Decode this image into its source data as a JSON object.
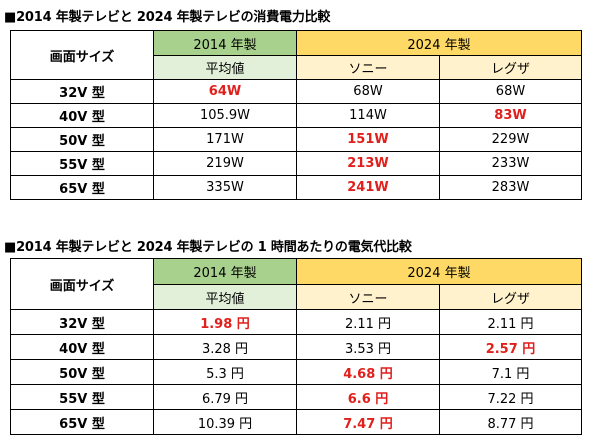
{
  "table1": {
    "title": "■2014 年製テレビと 2024 年製テレビの消費電力比較",
    "header": {
      "size_label": "画面サイズ",
      "year_2014": "2014 年製",
      "year_2024": "2024 年製",
      "avg_label": "平均値",
      "sony_label": "ソニー",
      "regza_label": "レグザ"
    },
    "rows": [
      {
        "size": "32V 型",
        "avg": "64W",
        "sony": "68W",
        "regza": "68W"
      },
      {
        "size": "40V 型",
        "avg": "105.9W",
        "sony": "114W",
        "regza": "83W"
      },
      {
        "size": "50V 型",
        "avg": "171W",
        "sony": "151W",
        "regza": "229W"
      },
      {
        "size": "55V 型",
        "avg": "219W",
        "sony": "213W",
        "regza": "233W"
      },
      {
        "size": "65V 型",
        "avg": "335W",
        "sony": "241W",
        "regza": "283W"
      }
    ],
    "highlight_color": "#e0201c"
  },
  "table2": {
    "title": "■2014 年製テレビと 2024 年製テレビの 1 時間あたりの電気代比較",
    "header": {
      "size_label": "画面サイズ",
      "year_2014": "2014 年製",
      "year_2024": "2024 年製",
      "avg_label": "平均値",
      "sony_label": "ソニー",
      "regza_label": "レグザ"
    },
    "rows": [
      {
        "size": "32V 型",
        "avg": "1.98 円",
        "sony": "2.11 円",
        "regza": "2.11 円"
      },
      {
        "size": "40V 型",
        "avg": "3.28 円",
        "sony": "3.53 円",
        "regza": "2.57 円"
      },
      {
        "size": "50V 型",
        "avg": "5.3 円",
        "sony": "4.68 円",
        "regza": "7.1 円"
      },
      {
        "size": "55V 型",
        "avg": "6.79 円",
        "sony": "6.6 円",
        "regza": "7.22 円"
      },
      {
        "size": "65V 型",
        "avg": "10.39 円",
        "sony": "7.47 円",
        "regza": "8.77 円"
      }
    ],
    "highlight_color": "#e0201c"
  },
  "colors": {
    "header_2014_dark": "#a9d18e",
    "header_2014_light": "#e2efd9",
    "header_2024_dark": "#ffd966",
    "header_2024_light": "#fff2cc"
  }
}
